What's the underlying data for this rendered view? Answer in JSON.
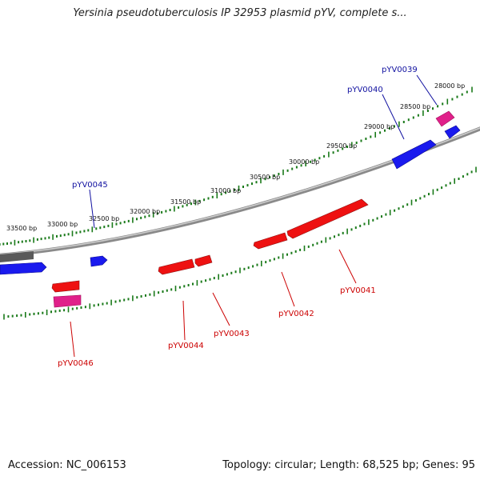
{
  "title": "Yersinia pseudotuberculosis IP 32953 plasmid pYV, complete s...",
  "accession": "Accession: NC_006153",
  "summary": "Topology: circular; Length: 68,525 bp; Genes: 95",
  "colors": {
    "forward_gene": "#1a1aee",
    "reverse_gene": "#ee1111",
    "other_gene": "#e0208a",
    "forward_label": "#1010a0",
    "reverse_label": "#cc0000",
    "backbone": "#8a8a8a",
    "tick": "#1a7a1a"
  },
  "tick_labels": [
    "28000 bp",
    "28500 bp",
    "29000 bp",
    "29500 bp",
    "30000 bp",
    "30500 bp",
    "31000 bp",
    "31500 bp",
    "32000 bp",
    "32500 bp",
    "33000 bp",
    "33500 bp"
  ],
  "gene_labels": [
    {
      "text": "pYV0039",
      "strand": "forward"
    },
    {
      "text": "pYV0040",
      "strand": "forward"
    },
    {
      "text": "pYV0045",
      "strand": "forward"
    },
    {
      "text": "pYV0041",
      "strand": "reverse"
    },
    {
      "text": "pYV0042",
      "strand": "reverse"
    },
    {
      "text": "pYV0043",
      "strand": "reverse"
    },
    {
      "text": "pYV0044",
      "strand": "reverse"
    },
    {
      "text": "pYV0046",
      "strand": "reverse"
    }
  ]
}
